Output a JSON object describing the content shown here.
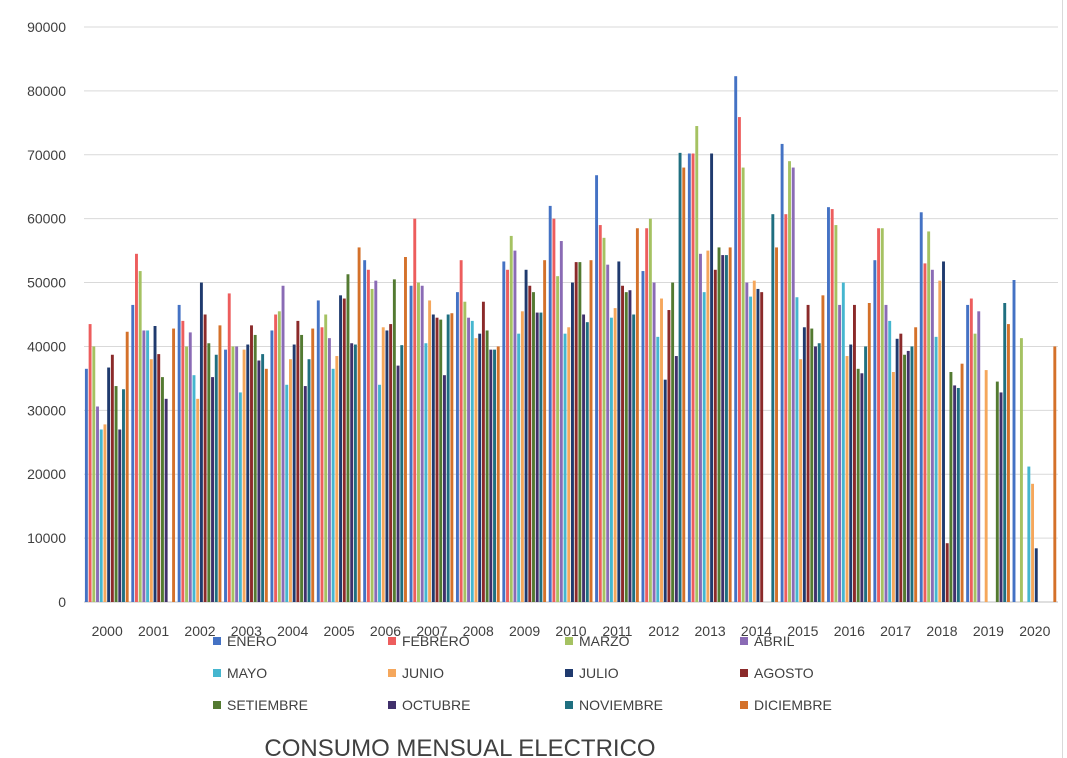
{
  "chart_data": {
    "type": "bar",
    "title": "CONSUMO MENSUAL ELECTRICO",
    "xlabel": "",
    "ylabel": "",
    "ylim": [
      0,
      90000
    ],
    "yticks": [
      0,
      10000,
      20000,
      30000,
      40000,
      50000,
      60000,
      70000,
      80000,
      90000
    ],
    "grid": true,
    "legend_position": "bottom",
    "categories": [
      "2000",
      "2001",
      "2002",
      "2003",
      "2004",
      "2005",
      "2006",
      "2007",
      "2008",
      "2009",
      "2010",
      "2011",
      "2012",
      "2013",
      "2014",
      "2015",
      "2016",
      "2017",
      "2018",
      "2019",
      "2020"
    ],
    "series": [
      {
        "name": "ENERO",
        "color": "#4472c4",
        "values": [
          36500,
          46500,
          46500,
          39500,
          42500,
          47200,
          53500,
          49500,
          48500,
          53300,
          62000,
          66800,
          51800,
          70200,
          82300,
          71700,
          61800,
          53500,
          61000,
          46500,
          50400
        ]
      },
      {
        "name": "FEBRERO",
        "color": "#ed5d5d",
        "values": [
          43500,
          54500,
          44000,
          48300,
          45000,
          43000,
          52000,
          60000,
          53500,
          52000,
          60000,
          59000,
          58500,
          70200,
          75900,
          60700,
          61500,
          58500,
          53000,
          47500,
          null
        ]
      },
      {
        "name": "MARZO",
        "color": "#a5c262",
        "values": [
          40000,
          51800,
          40000,
          40000,
          45500,
          45000,
          49000,
          50000,
          47000,
          57300,
          51000,
          57000,
          60000,
          74500,
          68000,
          69000,
          59000,
          58500,
          58000,
          42000,
          41300
        ]
      },
      {
        "name": "ABRIL",
        "color": "#8a6bb5",
        "values": [
          30600,
          42500,
          42200,
          40000,
          49500,
          41300,
          50300,
          49500,
          44500,
          55000,
          56500,
          52800,
          50000,
          54500,
          50000,
          68000,
          46500,
          46500,
          52000,
          45500,
          null
        ]
      },
      {
        "name": "MAYO",
        "color": "#45b6cf",
        "values": [
          27000,
          42500,
          35500,
          32800,
          34000,
          36500,
          34000,
          40500,
          44000,
          42000,
          42000,
          44500,
          41500,
          48500,
          47800,
          47700,
          50000,
          44000,
          41500,
          null,
          21200
        ]
      },
      {
        "name": "JUNIO",
        "color": "#f5a75c",
        "values": [
          27800,
          38000,
          31800,
          39500,
          38000,
          38500,
          43000,
          47200,
          41300,
          45500,
          43000,
          46000,
          47500,
          55000,
          50300,
          38000,
          38500,
          36000,
          50300,
          36300,
          18500
        ]
      },
      {
        "name": "JULIO",
        "color": "#1f3a6e",
        "values": [
          36700,
          43200,
          50000,
          40300,
          40300,
          48000,
          42500,
          45000,
          42000,
          52000,
          50000,
          53300,
          34800,
          70200,
          49000,
          43000,
          40300,
          41200,
          53300,
          null,
          8400
        ]
      },
      {
        "name": "AGOSTO",
        "color": "#8b2a2a",
        "values": [
          38700,
          38800,
          45000,
          43300,
          44000,
          47500,
          43500,
          44500,
          47000,
          49500,
          53200,
          49500,
          45700,
          52000,
          48500,
          46500,
          46500,
          42000,
          9200,
          null,
          null
        ]
      },
      {
        "name": "SETIEMBRE",
        "color": "#537a31",
        "values": [
          33800,
          35200,
          40500,
          41800,
          41800,
          51300,
          50500,
          44200,
          42500,
          48500,
          53200,
          48500,
          50000,
          55500,
          null,
          42800,
          36500,
          38700,
          36000,
          34500,
          null
        ]
      },
      {
        "name": "OCTUBRE",
        "color": "#40306b",
        "values": [
          27000,
          31800,
          35200,
          37800,
          33800,
          40500,
          37000,
          35500,
          39500,
          45300,
          45000,
          48800,
          38500,
          54300,
          null,
          40000,
          35800,
          39300,
          33900,
          32800,
          null
        ]
      },
      {
        "name": "NOVIEMBRE",
        "color": "#1f6f80",
        "values": [
          33300,
          null,
          38700,
          38800,
          38000,
          40300,
          40200,
          45000,
          39500,
          45300,
          43800,
          45000,
          70300,
          54300,
          60700,
          40500,
          40000,
          40000,
          33500,
          46800,
          null
        ]
      },
      {
        "name": "DICIEMBRE",
        "color": "#d4712a",
        "values": [
          42300,
          42800,
          43300,
          36500,
          42800,
          55500,
          54000,
          45200,
          40000,
          53500,
          53500,
          58500,
          68000,
          55500,
          55500,
          48000,
          46800,
          43000,
          37300,
          43500,
          40000
        ]
      }
    ]
  }
}
